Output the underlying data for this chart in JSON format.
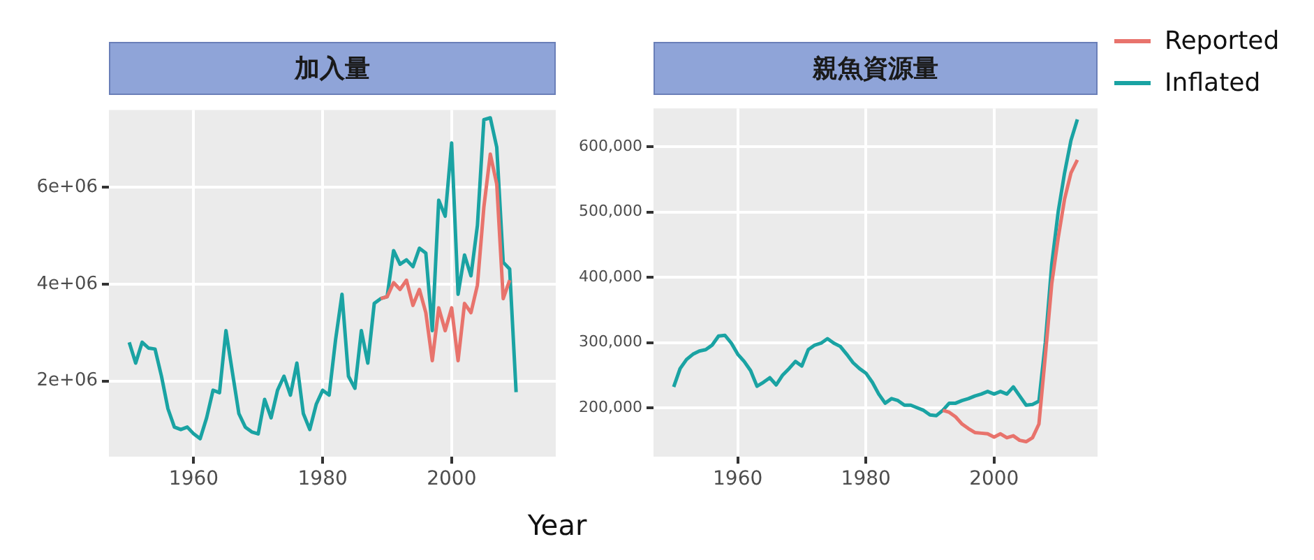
{
  "chart_data": [
    {
      "type": "line",
      "title": "加入量",
      "xlabel": "Year",
      "x": [
        1950,
        1951,
        1952,
        1953,
        1954,
        1955,
        1956,
        1957,
        1958,
        1959,
        1960,
        1961,
        1962,
        1963,
        1964,
        1965,
        1966,
        1967,
        1968,
        1969,
        1970,
        1971,
        1972,
        1973,
        1974,
        1975,
        1976,
        1977,
        1978,
        1979,
        1980,
        1981,
        1982,
        1983,
        1984,
        1985,
        1986,
        1987,
        1988,
        1989,
        1990,
        1991,
        1992,
        1993,
        1994,
        1995,
        1996,
        1997,
        1998,
        1999,
        2000,
        2001,
        2002,
        2003,
        2004,
        2005,
        2006,
        2007,
        2008,
        2009,
        2010
      ],
      "series": [
        {
          "name": "Reported",
          "color": "#e8736c",
          "values": [
            null,
            null,
            null,
            null,
            null,
            null,
            null,
            null,
            null,
            null,
            null,
            null,
            null,
            null,
            null,
            null,
            null,
            null,
            null,
            null,
            null,
            null,
            null,
            null,
            null,
            null,
            null,
            null,
            null,
            null,
            null,
            null,
            null,
            null,
            null,
            null,
            null,
            null,
            null,
            3700000,
            3740000,
            4030000,
            3890000,
            4080000,
            3560000,
            3890000,
            3410000,
            2420000,
            3510000,
            3040000,
            3510000,
            2420000,
            3600000,
            3410000,
            3980000,
            5590000,
            6680000,
            6060000,
            3700000,
            4080000,
            null
          ]
        },
        {
          "name": "Inflated",
          "color": "#1aa3a3",
          "values": [
            2800000,
            2370000,
            2800000,
            2680000,
            2660000,
            2100000,
            1430000,
            1050000,
            1000000,
            1050000,
            910000,
            810000,
            1240000,
            1810000,
            1760000,
            3040000,
            2180000,
            1330000,
            1050000,
            950000,
            910000,
            1620000,
            1240000,
            1810000,
            2100000,
            1710000,
            2370000,
            1330000,
            1000000,
            1520000,
            1810000,
            1710000,
            2850000,
            3790000,
            2100000,
            1850000,
            3040000,
            2370000,
            3600000,
            3700000,
            3740000,
            4690000,
            4410000,
            4500000,
            4360000,
            4740000,
            4640000,
            3040000,
            5730000,
            5400000,
            6910000,
            3790000,
            4600000,
            4170000,
            5210000,
            7390000,
            7430000,
            6820000,
            4450000,
            4310000,
            1770000
          ]
        }
      ],
      "xlim": [
        1946.85,
        2016.15
      ],
      "xticks": [
        1960,
        1980,
        2000
      ],
      "ylim": [
        440000,
        7590000
      ],
      "yticks": [
        {
          "value": 2000000,
          "label": "2e+06"
        },
        {
          "value": 4000000,
          "label": "4e+06"
        },
        {
          "value": 6000000,
          "label": "6e+06"
        }
      ],
      "grid": true,
      "marker": "none",
      "legend": "right"
    },
    {
      "type": "line",
      "title": "親魚資源量",
      "x": [
        1950,
        1951,
        1952,
        1953,
        1954,
        1955,
        1956,
        1957,
        1958,
        1959,
        1960,
        1961,
        1962,
        1963,
        1964,
        1965,
        1966,
        1967,
        1968,
        1969,
        1970,
        1971,
        1972,
        1973,
        1974,
        1975,
        1976,
        1977,
        1978,
        1979,
        1980,
        1981,
        1982,
        1983,
        1984,
        1985,
        1986,
        1987,
        1988,
        1989,
        1990,
        1991,
        1992,
        1993,
        1994,
        1995,
        1996,
        1997,
        1998,
        1999,
        2000,
        2001,
        2002,
        2003,
        2004,
        2005,
        2006,
        2007,
        2008,
        2009,
        2010,
        2011,
        2012,
        2013
      ],
      "series": [
        {
          "color": "#e8736c",
          "values": [
            null,
            null,
            null,
            null,
            null,
            null,
            null,
            null,
            null,
            null,
            null,
            null,
            null,
            null,
            null,
            null,
            null,
            null,
            null,
            null,
            null,
            null,
            null,
            null,
            null,
            null,
            null,
            null,
            null,
            null,
            null,
            null,
            null,
            null,
            null,
            null,
            null,
            null,
            null,
            null,
            null,
            null,
            196000,
            193000,
            186000,
            175000,
            168000,
            162000,
            161000,
            160000,
            155000,
            160000,
            154000,
            157000,
            150000,
            148000,
            154000,
            175000,
            280000,
            390000,
            460000,
            520000,
            560000,
            580000
          ]
        },
        {
          "color": "#1aa3a3",
          "values": [
            232000,
            260000,
            274000,
            282000,
            287000,
            289000,
            296000,
            310000,
            311000,
            299000,
            282000,
            271000,
            257000,
            233000,
            239000,
            246000,
            235000,
            250000,
            260000,
            271000,
            264000,
            289000,
            296000,
            299000,
            306000,
            299000,
            294000,
            282000,
            269000,
            260000,
            253000,
            239000,
            221000,
            207000,
            214000,
            211000,
            204000,
            204000,
            200000,
            196000,
            189000,
            188000,
            196000,
            207000,
            207000,
            211000,
            214000,
            218000,
            221000,
            225000,
            221000,
            225000,
            221000,
            232000,
            218000,
            204000,
            205000,
            210000,
            300000,
            420000,
            500000,
            560000,
            610000,
            642000
          ]
        }
      ],
      "xlim": [
        1946.85,
        2016.15
      ],
      "xticks": [
        1960,
        1980,
        2000
      ],
      "ylim": [
        125000,
        659000
      ],
      "yticks": [
        {
          "value": 200000,
          "label": "200,000"
        },
        {
          "value": 300000,
          "label": "300,000"
        },
        {
          "value": 400000,
          "label": "400,000"
        },
        {
          "value": 500000,
          "label": "500,000"
        },
        {
          "value": 600000,
          "label": "600,000"
        }
      ],
      "grid": true,
      "marker": "none"
    }
  ]
}
